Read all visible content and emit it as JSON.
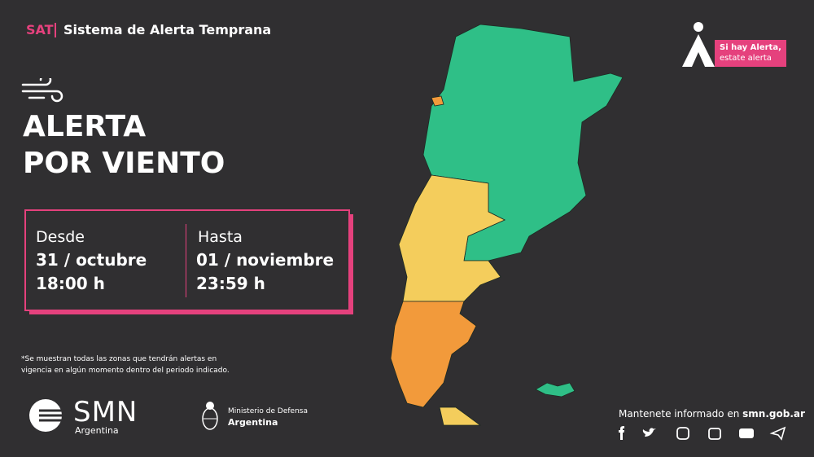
{
  "header": {
    "tag": "SAT",
    "title": "Sistema de Alerta Temprana"
  },
  "alert": {
    "line1": "ALERTA",
    "line2": "POR VIENTO"
  },
  "period": {
    "from": {
      "label": "Desde",
      "date": "31 / octubre",
      "time": "18:00 h"
    },
    "to": {
      "label": "Hasta",
      "date": "01 / noviembre",
      "time": "23:59 h"
    }
  },
  "note": [
    "*Se muestran todas las zonas que tendrán alertas en",
    "vigencia en algún momento dentro del periodo indicado."
  ],
  "badge": {
    "line1": "Si hay Alerta,",
    "line2": "estate alerta"
  },
  "logos": {
    "smn": "SMN",
    "smn_sub": "Argentina",
    "ministry": "Ministerio de Defensa",
    "ministry_sub": "Argentina"
  },
  "footer": {
    "text": "Mantenete informado en ",
    "link": "smn.gob.ar"
  }
}
